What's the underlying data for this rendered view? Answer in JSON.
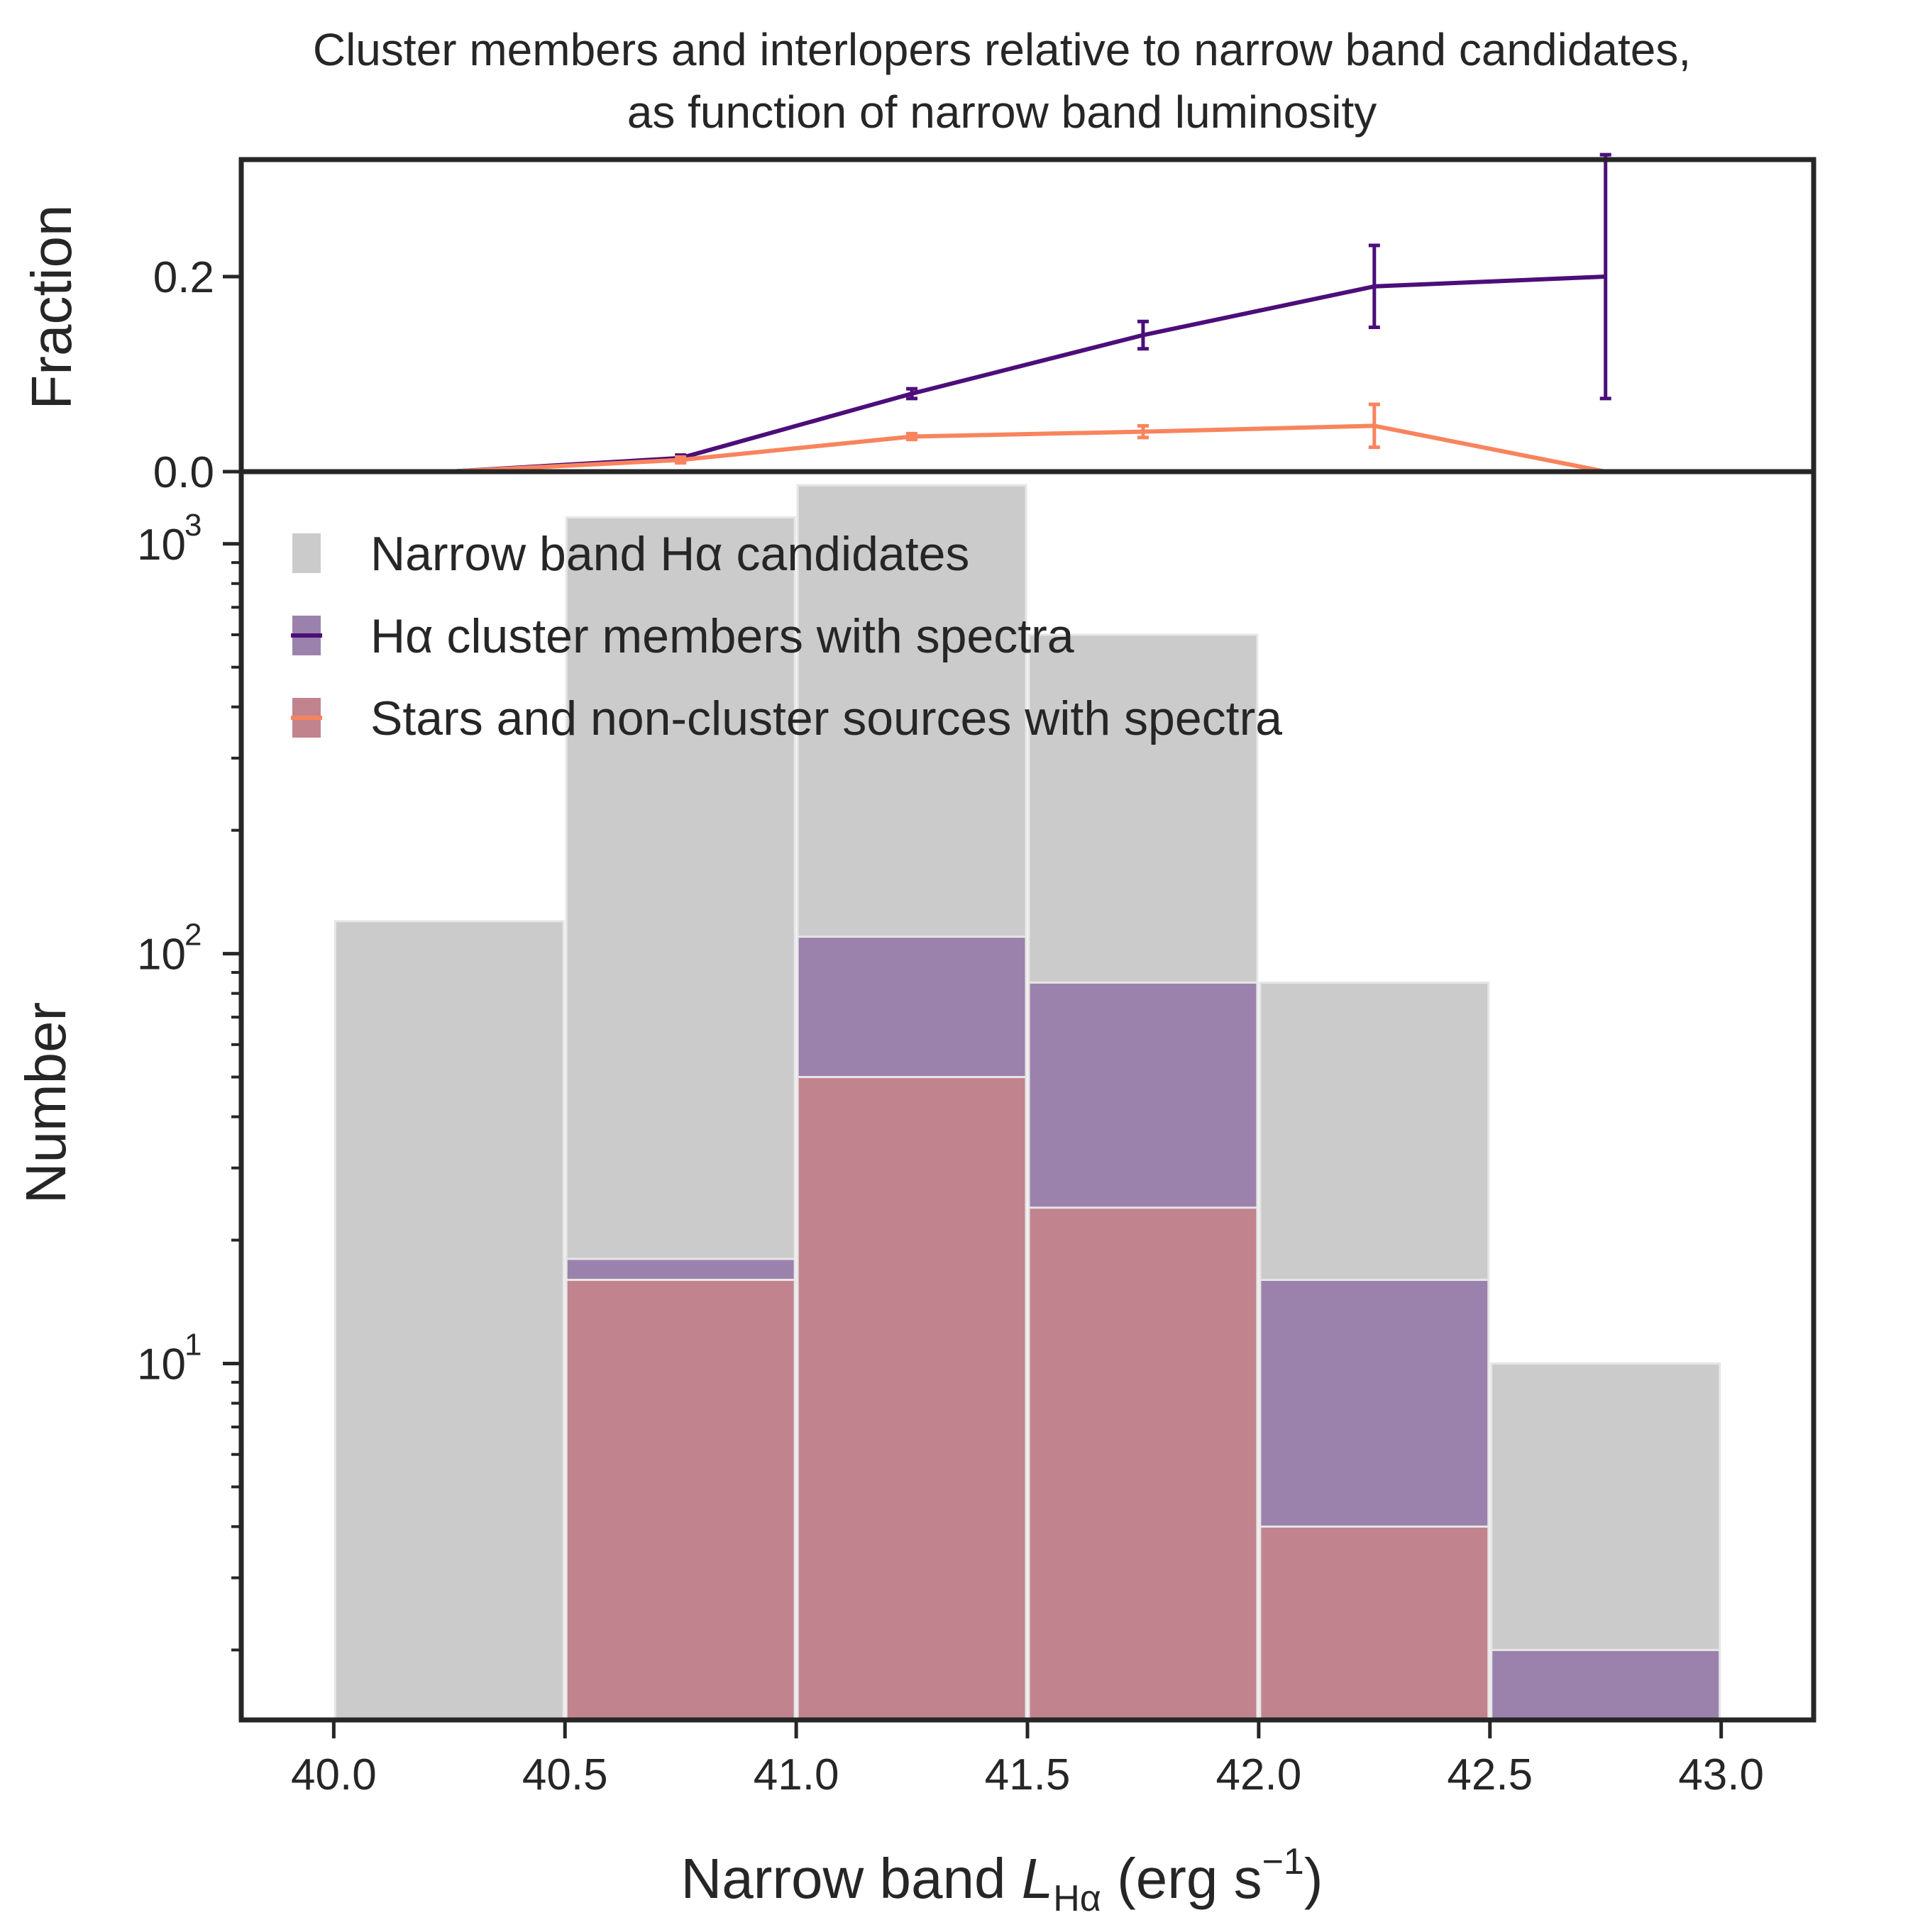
{
  "title_line1": "Cluster members and interlopers relative to narrow band candidates,",
  "title_line2": "as function of narrow band luminosity",
  "chart_data": [
    {
      "panel": "top",
      "type": "line",
      "ylabel": "Fraction",
      "ylim": [
        0.0,
        0.32
      ],
      "yticks": [
        "0.0",
        "0.2"
      ],
      "grid": false,
      "series": [
        {
          "name": "Hα cluster members with spectra",
          "color": "#4c0e7a",
          "x": [
            40.25,
            40.75,
            41.25,
            41.75,
            42.25,
            42.75
          ],
          "y": [
            0.0,
            0.014,
            0.08,
            0.14,
            0.19,
            0.2
          ],
          "yerr": [
            0.0,
            0.003,
            0.005,
            0.014,
            0.042,
            0.125
          ]
        },
        {
          "name": "Stars and non-cluster sources with spectra",
          "color": "#f8845e",
          "x": [
            40.25,
            40.75,
            41.25,
            41.75,
            42.25,
            42.75
          ],
          "y": [
            0.0,
            0.012,
            0.036,
            0.041,
            0.047,
            0.0
          ],
          "yerr": [
            0.0,
            0.003,
            0.003,
            0.006,
            0.022,
            0.0
          ]
        }
      ]
    },
    {
      "panel": "bottom",
      "type": "bar",
      "ylabel": "Number",
      "yscale": "log",
      "ylim": [
        1.35,
        1500
      ],
      "yticks": [
        {
          "base": "10",
          "exp": "1",
          "value": 10
        },
        {
          "base": "10",
          "exp": "2",
          "value": 100
        },
        {
          "base": "10",
          "exp": "3",
          "value": 1000
        }
      ],
      "xlim": [
        39.8,
        43.2
      ],
      "xticks": [
        "40.0",
        "40.5",
        "41.0",
        "41.5",
        "42.0",
        "42.5",
        "43.0"
      ],
      "xlabel_pre": "Narrow band ",
      "xlabel_L": "L",
      "xlabel_sub": "Hα",
      "xlabel_unit": " (erg s",
      "xlabel_exp": "−1",
      "xlabel_close": ")",
      "legend_position": "upper-left",
      "bin_edges": [
        40.0,
        40.5,
        41.0,
        41.5,
        42.0,
        42.5,
        43.0
      ],
      "series": [
        {
          "name": "Narrow band Hα candidates",
          "color": "#cbcbcb",
          "values": [
            120,
            1160,
            1390,
            600,
            85,
            10
          ]
        },
        {
          "name": "Hα cluster members with spectra",
          "color": "#9b82ac",
          "values": [
            0,
            18,
            110,
            85,
            16,
            2
          ]
        },
        {
          "name": "Stars and non-cluster sources with spectra",
          "color": "#c1838e",
          "values": [
            0,
            16,
            50,
            24,
            4,
            0
          ]
        }
      ]
    }
  ]
}
